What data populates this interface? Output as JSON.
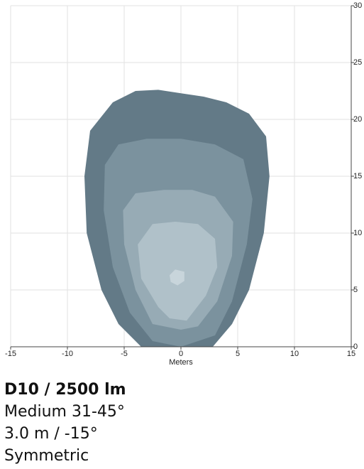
{
  "chart_data": {
    "type": "contour",
    "title": "D10 / 2500 lm",
    "annotations": [
      "Medium 31-45°",
      "3.0 m / -15°",
      "Symmetric"
    ],
    "x_label": "Meters",
    "xlim": [
      -15,
      15
    ],
    "xticks": [
      -15,
      -10,
      -5,
      0,
      5,
      10,
      15
    ],
    "ylim": [
      0,
      30
    ],
    "yticks": [
      0,
      5,
      10,
      15,
      20,
      25,
      30
    ],
    "grid": true,
    "series": [
      {
        "color": "#637a87",
        "x": [
          -3.5,
          -5.5,
          -7,
          -8.3,
          -8.5,
          -8,
          -6,
          -4,
          -2,
          0,
          2,
          4,
          6,
          7.5,
          7.8,
          7.3,
          6,
          4.5,
          2.8
        ],
        "y": [
          0,
          2,
          5,
          10,
          15,
          19,
          21.5,
          22.5,
          22.6,
          22.3,
          22,
          21.5,
          20.5,
          18.5,
          15,
          10,
          5,
          2,
          0
        ]
      },
      {
        "color": "#7b929e",
        "x": [
          -2.5,
          -4.5,
          -6,
          -6.8,
          -6.7,
          -5.5,
          -3,
          0,
          3,
          5.5,
          6.3,
          5.8,
          4.5,
          3,
          0
        ],
        "y": [
          0.5,
          3,
          7,
          12,
          16,
          17.8,
          18.3,
          18.3,
          17.8,
          16.5,
          13,
          9,
          4,
          1,
          0
        ]
      },
      {
        "color": "#97abb5",
        "x": [
          -2.5,
          -4,
          -5,
          -5.1,
          -4,
          -1.5,
          1,
          3,
          4.6,
          4.5,
          3.2,
          1.5,
          0
        ],
        "y": [
          2,
          5,
          9,
          12,
          13.5,
          13.8,
          13.8,
          13.2,
          11,
          8,
          4,
          1.8,
          1.5
        ]
      },
      {
        "color": "#b0c1c9",
        "x": [
          -2,
          -3.5,
          -3.8,
          -2.5,
          -0.5,
          1.5,
          3,
          3.2,
          2.2,
          0.5,
          -1
        ],
        "y": [
          3.5,
          6,
          9,
          10.8,
          11,
          10.8,
          9.5,
          7,
          4.5,
          2.3,
          2.5
        ]
      },
      {
        "color": "#c8d5db",
        "x": [
          -1,
          -0.5,
          0.3,
          0.3,
          -0.3,
          -0.9
        ],
        "y": [
          6.3,
          6.8,
          6.6,
          5.8,
          5.4,
          5.7
        ]
      }
    ]
  }
}
